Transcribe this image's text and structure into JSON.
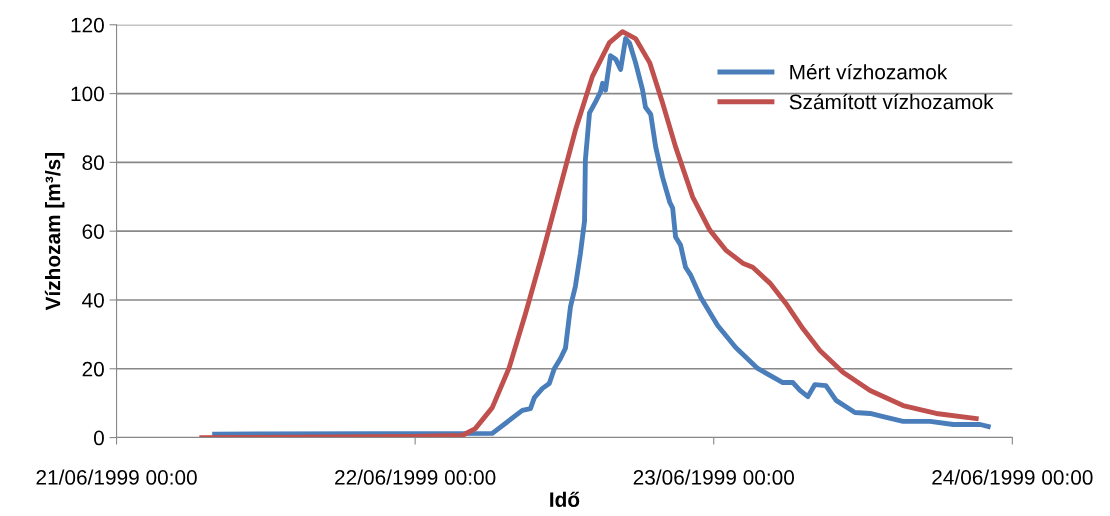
{
  "chart_data": {
    "type": "line",
    "xlabel": "Idő",
    "ylabel": "Vízhozam [m³/s]",
    "xlim": [
      "1999-06-21T00:00",
      "1999-06-24T00:00"
    ],
    "xticks": [
      {
        "value": "1999-06-21T00:00",
        "label": "21/06/1999 00:00"
      },
      {
        "value": "1999-06-22T00:00",
        "label": "22/06/1999 00:00"
      },
      {
        "value": "1999-06-23T00:00",
        "label": "23/06/1999 00:00"
      },
      {
        "value": "1999-06-24T00:00",
        "label": "24/06/1999 00:00"
      }
    ],
    "ylim": [
      0,
      120
    ],
    "yticks": [
      0,
      20,
      40,
      60,
      80,
      100,
      120
    ],
    "grid": "y",
    "legend": "top right",
    "marker": "none",
    "line_style": "solid",
    "series": [
      {
        "name": "Mért vízhozamok",
        "color": "#4a7ebb",
        "x": [
          "1999-06-21T07:53",
          "1999-06-22T06:12",
          "1999-06-22T07:34",
          "1999-06-22T08:37",
          "1999-06-22T09:16",
          "1999-06-22T09:35",
          "1999-06-22T10:14",
          "1999-06-22T10:47",
          "1999-06-22T11:11",
          "1999-06-22T11:41",
          "1999-06-22T12:05",
          "1999-06-22T12:29",
          "1999-06-22T12:53",
          "1999-06-22T13:17",
          "1999-06-22T13:37",
          "1999-06-22T13:41",
          "1999-06-22T14:01",
          "1999-06-22T14:30",
          "1999-06-22T14:54",
          "1999-06-22T15:04",
          "1999-06-22T15:18",
          "1999-06-22T15:42",
          "1999-06-22T16:07",
          "1999-06-22T16:31",
          "1999-06-22T16:55",
          "1999-06-22T17:14",
          "1999-06-22T17:43",
          "1999-06-22T18:17",
          "1999-06-22T18:31",
          "1999-06-22T18:56",
          "1999-06-22T19:20",
          "1999-06-22T19:53",
          "1999-06-22T20:28",
          "1999-06-22T20:42",
          "1999-06-22T20:56",
          "1999-06-22T21:20",
          "1999-06-22T21:44",
          "1999-06-22T22:09",
          "1999-06-22T22:57",
          "1999-06-23T00:19",
          "1999-06-23T01:46",
          "1999-06-23T03:32",
          "1999-06-23T05:33",
          "1999-06-23T06:22",
          "1999-06-23T06:56",
          "1999-06-23T07:34",
          "1999-06-23T08:08",
          "1999-06-23T09:01",
          "1999-06-23T09:50",
          "1999-06-23T11:21",
          "1999-06-23T12:34",
          "1999-06-23T13:37",
          "1999-06-23T15:13",
          "1999-06-23T17:24",
          "1999-06-23T19:15",
          "1999-06-23T21:25",
          "1999-06-23T22:04"
        ],
        "values": [
          1,
          1.2,
          5,
          7.9,
          8.4,
          11.6,
          14.3,
          15.7,
          20,
          23,
          26,
          38,
          44,
          53.5,
          63,
          80.7,
          94.4,
          97.6,
          100.5,
          103,
          101,
          111,
          110,
          107,
          116,
          114.7,
          109,
          101,
          96,
          94,
          84.5,
          75.7,
          68.4,
          66.7,
          58.3,
          56,
          49.5,
          47.2,
          40.8,
          32.6,
          26.2,
          20.1,
          16,
          16,
          13.7,
          11.9,
          15.4,
          15.1,
          10.8,
          7.3,
          7,
          6.1,
          4.7,
          4.7,
          3.8,
          3.8,
          3.2
        ]
      },
      {
        "name": "Számított vízhozamok",
        "color": "#c0504d",
        "x": [
          "1999-06-21T06:51",
          "1999-06-22T00:00",
          "1999-06-22T03:47",
          "1999-06-22T04:50",
          "1999-06-22T06:12",
          "1999-06-22T07:34",
          "1999-06-22T08:52",
          "1999-06-22T10:14",
          "1999-06-22T11:36",
          "1999-06-22T12:53",
          "1999-06-22T14:15",
          "1999-06-22T15:37",
          "1999-06-22T16:40",
          "1999-06-22T17:43",
          "1999-06-22T18:51",
          "1999-06-22T19:53",
          "1999-06-22T20:56",
          "1999-06-22T22:18",
          "1999-06-22T23:41",
          "1999-06-23T00:58",
          "1999-06-23T02:20",
          "1999-06-23T03:08",
          "1999-06-23T04:31",
          "1999-06-23T05:48",
          "1999-06-23T07:10",
          "1999-06-23T08:32",
          "1999-06-23T10:23",
          "1999-06-23T12:34",
          "1999-06-23T15:13",
          "1999-06-23T17:53",
          "1999-06-23T21:06"
        ],
        "values": [
          0,
          0.3,
          0.6,
          2.6,
          8.7,
          20.4,
          36,
          53.5,
          72,
          89.4,
          105,
          114.8,
          118,
          116,
          109,
          97.3,
          84.5,
          70,
          60.3,
          54.5,
          50.7,
          49.5,
          44.9,
          39,
          31.7,
          25.3,
          19,
          13.7,
          9.3,
          7,
          5.5
        ]
      }
    ]
  }
}
